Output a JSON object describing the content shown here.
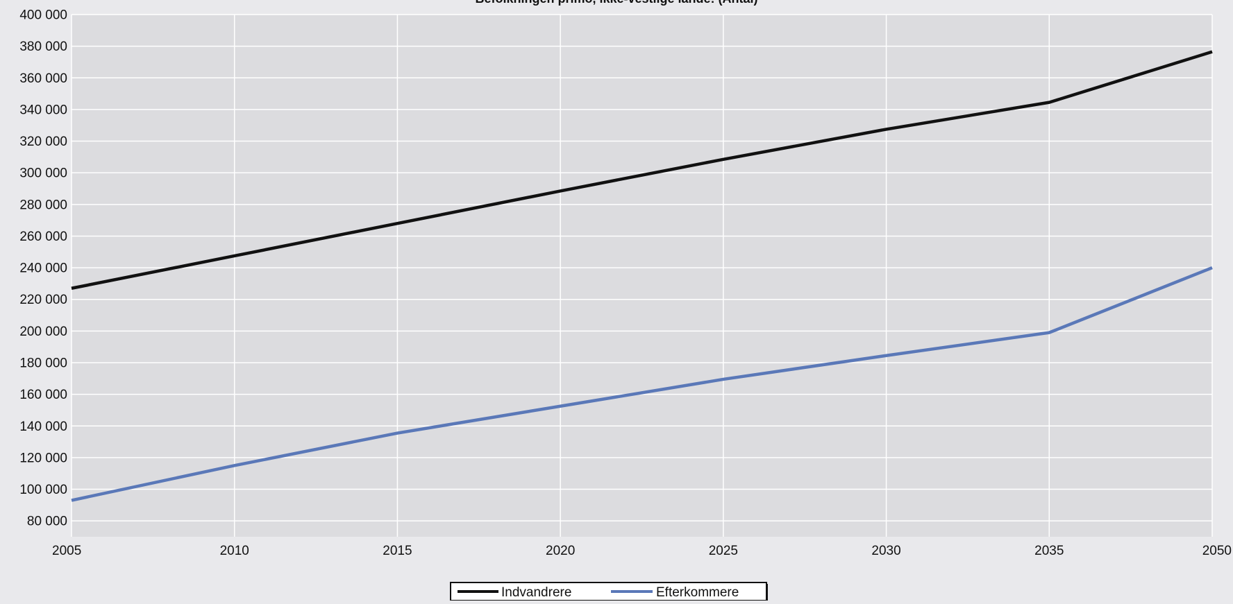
{
  "chart_data": {
    "type": "line",
    "title": "Befolkningen primo, ikke-vestlige lande: (Antal)",
    "xlabel": "",
    "ylabel": "",
    "x": [
      2005,
      2010,
      2015,
      2020,
      2025,
      2030,
      2035,
      2050
    ],
    "x_ticks": [
      "2005",
      "2010",
      "2015",
      "2020",
      "2025",
      "2030",
      "2035",
      "2050"
    ],
    "y_ticks": [
      80000,
      100000,
      120000,
      140000,
      160000,
      180000,
      200000,
      220000,
      240000,
      260000,
      280000,
      300000,
      320000,
      340000,
      360000,
      380000,
      400000
    ],
    "y_tick_labels": [
      "80 000",
      "100 000",
      "120 000",
      "140 000",
      "160 000",
      "180 000",
      "200 000",
      "220 000",
      "240 000",
      "260 000",
      "280 000",
      "300 000",
      "320 000",
      "340 000",
      "360 000",
      "380 000",
      "400 000"
    ],
    "ylim": [
      70000,
      400000
    ],
    "grid": true,
    "legend_position": "bottom-center",
    "series": [
      {
        "name": "Indvandrere",
        "color": "#111111",
        "values": [
          227000,
          247500,
          268000,
          288500,
          308500,
          327500,
          344500,
          376500
        ]
      },
      {
        "name": "Efterkommere",
        "color": "#5a78b8",
        "values": [
          93000,
          115000,
          135500,
          152500,
          169500,
          184500,
          199000,
          240000
        ]
      }
    ]
  }
}
